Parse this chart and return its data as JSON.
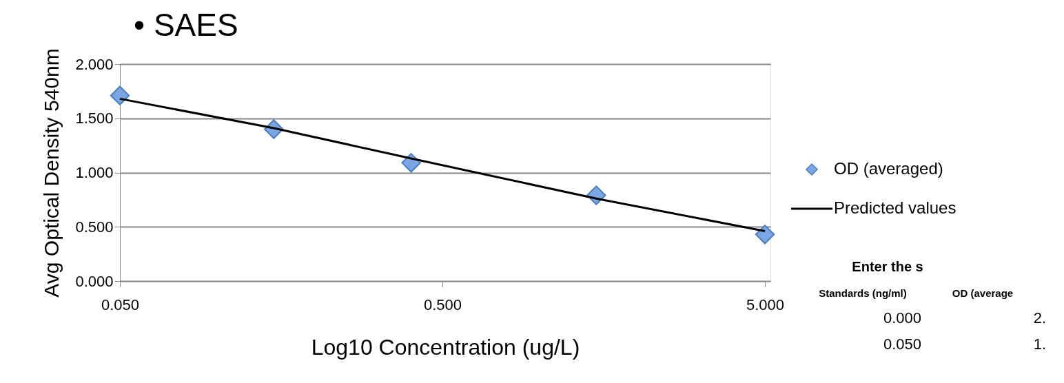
{
  "chart_data": {
    "type": "scatter",
    "title": "• SAES",
    "xlabel": "Log10 Concentration (ug/L)",
    "ylabel": "Avg Optical Density 540nm",
    "log": "x",
    "grid": "y",
    "legend": "right",
    "xlim": [
      0.05,
      5.2
    ],
    "xticks": [
      {
        "value": 0.05,
        "label": "0.050"
      },
      {
        "value": 0.5,
        "label": "0.500"
      },
      {
        "value": 5,
        "label": "5.000"
      }
    ],
    "ylim": [
      0,
      2
    ],
    "yticks": [
      {
        "value": 0,
        "label": "0.000"
      },
      {
        "value": 0.5,
        "label": "0.500"
      },
      {
        "value": 1,
        "label": "1.000"
      },
      {
        "value": 1.5,
        "label": "1.500"
      },
      {
        "value": 2,
        "label": "2.000"
      }
    ],
    "x": [
      0.05,
      0.15,
      0.4,
      1.5,
      5
    ],
    "series": [
      {
        "name": "OD (averaged)",
        "marker": "diamond",
        "color": "#7aa6e6",
        "values": [
          1.71,
          1.4,
          1.09,
          0.79,
          0.43
        ]
      },
      {
        "name": "Predicted values",
        "type": "line",
        "marker": "none",
        "color": "#000000",
        "line_style": "solid",
        "values": [
          1.68,
          1.41,
          1.13,
          0.76,
          0.46
        ]
      }
    ],
    "annotations": [
      "Enter the s",
      "Standards (ng/ml)",
      "OD (average",
      "0.000",
      "2.",
      "0.050",
      "1."
    ]
  }
}
